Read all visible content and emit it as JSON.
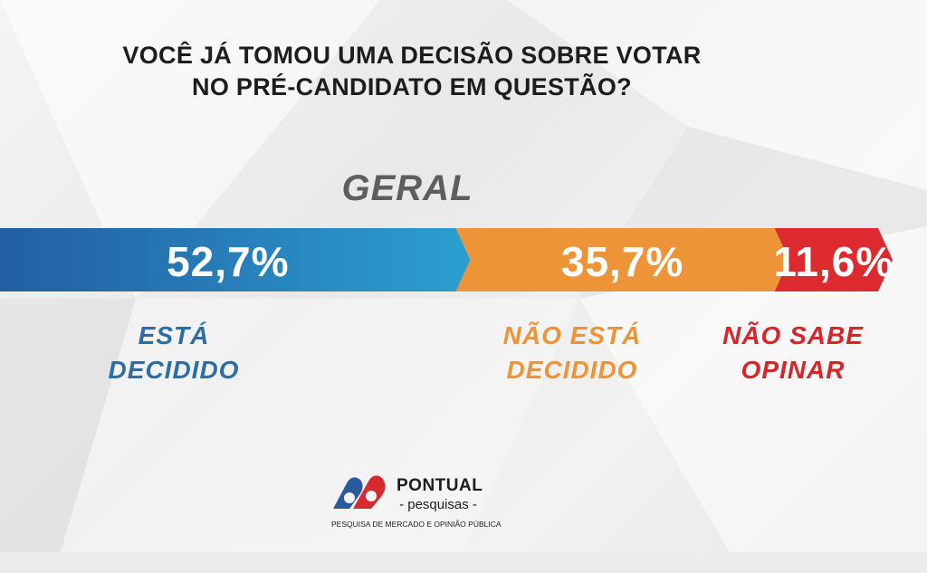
{
  "title_line1": "VOCÊ JÁ TOMOU UMA DECISÃO SOBRE VOTAR",
  "title_line2": "NO PRÉ-CANDIDATO EM QUESTÃO?",
  "chart_data": {
    "type": "bar",
    "stacked": true,
    "orientation": "horizontal",
    "title": "VOCÊ JÁ TOMOU UMA DECISÃO SOBRE VOTAR NO PRÉ-CANDIDATO EM QUESTÃO?",
    "subtitle": "GERAL",
    "unit": "%",
    "segments": [
      {
        "label_line1": "ESTÁ",
        "label_line2": "DECIDIDO",
        "value": 52.7,
        "value_label": "52,7%",
        "color": "#2a77b8"
      },
      {
        "label_line1": "NÃO ESTÁ",
        "label_line2": "DECIDIDO",
        "value": 35.7,
        "value_label": "35,7%",
        "color": "#ec9437"
      },
      {
        "label_line1": "NÃO SABE",
        "label_line2": "OPINAR",
        "value": 11.6,
        "value_label": "11,6%",
        "color": "#dd2a2e"
      }
    ]
  },
  "colors": {
    "blue_label": "#2e6da4",
    "orange_label": "#ec9437",
    "red_label": "#d4272c",
    "logo_blue": "#2b5a9c",
    "logo_red": "#d62a30"
  },
  "logo": {
    "name": "PONTUAL",
    "sub": "- pesquisas -",
    "tagline": "PESQUISA DE MERCADO E OPINIÃO PÚBLICA"
  }
}
